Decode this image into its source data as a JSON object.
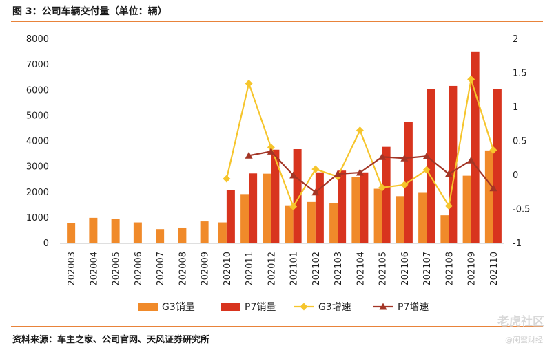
{
  "title": "图 3：公司车辆交付量（单位：辆）",
  "source": "资料来源：车主之家、公司官网、天风证券研究所",
  "watermark": {
    "main": "老虎社区",
    "sub": "@闺蜜财经"
  },
  "colors": {
    "g3_bar": "#f08a2a",
    "p7_bar": "#d8341e",
    "g3_line": "#f6c52c",
    "p7_line": "#a33526",
    "rule": "#e8833a"
  },
  "chart_data": {
    "type": "bar",
    "categories": [
      "202003",
      "202004",
      "202005",
      "202006",
      "202007",
      "202008",
      "202009",
      "202010",
      "202011",
      "202012",
      "202101",
      "202102",
      "202103",
      "202104",
      "202105",
      "202106",
      "202107",
      "202108",
      "202109",
      "202110"
    ],
    "y_left_ticks": [
      "0",
      "1000",
      "2000",
      "3000",
      "4000",
      "5000",
      "6000",
      "7000",
      "8000"
    ],
    "y_right_ticks": [
      "-1",
      "-0.5",
      "0",
      "0.5",
      "1",
      "1.5",
      "2"
    ],
    "ylim_left": [
      0,
      8000
    ],
    "ylim_right": [
      -1,
      2
    ],
    "legend_position": "bottom",
    "series": [
      {
        "name": "G3销量",
        "kind": "bar",
        "axis": "left",
        "values": [
          800,
          1000,
          960,
          820,
          560,
          620,
          860,
          820,
          1930,
          2730,
          1490,
          1620,
          1580,
          2600,
          2140,
          1850,
          1980,
          1100,
          2650,
          3640
        ]
      },
      {
        "name": "P7销量",
        "kind": "bar",
        "axis": "left",
        "values": [
          null,
          null,
          null,
          null,
          null,
          null,
          null,
          2100,
          2740,
          3670,
          3690,
          2780,
          2850,
          2780,
          3780,
          4750,
          6060,
          6170,
          7520,
          6060
        ]
      },
      {
        "name": "G3增速",
        "kind": "line",
        "axis": "right",
        "values": [
          null,
          null,
          null,
          null,
          null,
          null,
          null,
          -0.05,
          1.35,
          0.41,
          -0.46,
          0.09,
          -0.02,
          0.66,
          -0.18,
          -0.14,
          0.08,
          -0.45,
          1.41,
          0.37
        ]
      },
      {
        "name": "P7增速",
        "kind": "line",
        "axis": "right",
        "values": [
          null,
          null,
          null,
          null,
          null,
          null,
          null,
          null,
          0.29,
          0.35,
          0.0,
          -0.25,
          0.02,
          0.04,
          0.27,
          0.25,
          0.28,
          0.02,
          0.22,
          -0.19
        ]
      }
    ]
  }
}
